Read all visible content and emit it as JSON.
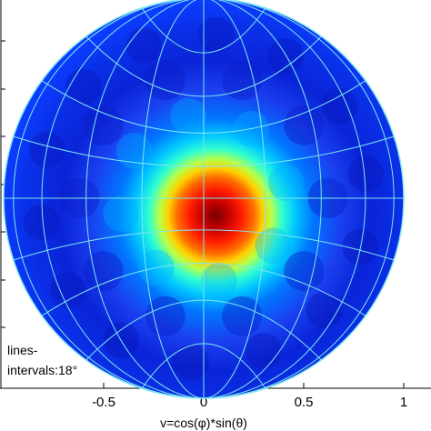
{
  "chart_data": {
    "type": "heatmap",
    "projection": "stereographic pole figure (circular)",
    "xlabel": "v=cos(φ)*sin(θ)",
    "ylabel": "",
    "xlim": [
      -1,
      1
    ],
    "ylim": [
      -1,
      1
    ],
    "x_tick_labels": [
      "-0.5",
      "0",
      "0.5",
      "1"
    ],
    "x_ticks": [
      -0.5,
      0,
      0.5,
      1
    ],
    "grid": "on",
    "grid_color": "#7fe8f0",
    "gridline_interval_deg": 18,
    "annotation": [
      "lines-",
      "intervals:18°"
    ],
    "colormap": "jet",
    "colormap_stops": [
      "#00008f",
      "#0000ff",
      "#0080ff",
      "#00ffff",
      "#80ff80",
      "#ffff00",
      "#ff8000",
      "#ff0000",
      "#800000"
    ],
    "intensity_peak": {
      "x": 0,
      "y": 0,
      "relative_value": 1.0
    },
    "intensity_profile": [
      {
        "r": 0.0,
        "value": 1.0
      },
      {
        "r": 0.1,
        "value": 0.9
      },
      {
        "r": 0.2,
        "value": 0.72
      },
      {
        "r": 0.3,
        "value": 0.45
      },
      {
        "r": 0.4,
        "value": 0.3
      },
      {
        "r": 0.5,
        "value": 0.2
      },
      {
        "r": 0.7,
        "value": 0.15
      },
      {
        "r": 0.9,
        "value": 0.12
      },
      {
        "r": 1.0,
        "value": 0.1
      }
    ]
  }
}
